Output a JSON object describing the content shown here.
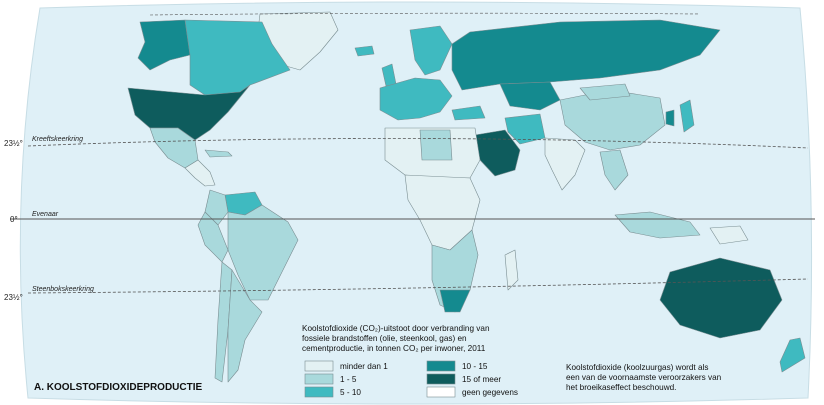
{
  "title": "A. KOOLSTOFDIOXIDEPRODUCTIE",
  "lines": {
    "tropic_north_deg": "23½°",
    "tropic_north_name": "Kreeftskeerkring",
    "equator_deg": "0°",
    "equator_name": "Evenaar",
    "tropic_south_deg": "23½°",
    "tropic_south_name": "Steenbokskeerkring"
  },
  "legend": {
    "heading": [
      "Koolstofdioxide (CO₂)-uitstoot door verbranding van",
      "fossiele brandstoffen (olie, steenkool, gas) en",
      "cementproductie, in tonnen CO₂ per inwoner, 2011"
    ],
    "items": [
      {
        "label": "minder dan 1",
        "color": "#e3f1f3"
      },
      {
        "label": "1 - 5",
        "color": "#a9d9dc"
      },
      {
        "label": "5 - 10",
        "color": "#3fbac0"
      },
      {
        "label": "10 - 15",
        "color": "#148a8f"
      },
      {
        "label": "15 of meer",
        "color": "#0e5c5d"
      },
      {
        "label": "geen gegevens",
        "color": "#ffffff"
      }
    ]
  },
  "note": [
    "Koolstofdioxide (koolzuurgas) wordt als",
    "een van de voornaamste veroorzakers van",
    "het broeikaseffect beschouwd."
  ],
  "colors": {
    "ocean": "#dff0f7",
    "border": "#7a8e92"
  }
}
